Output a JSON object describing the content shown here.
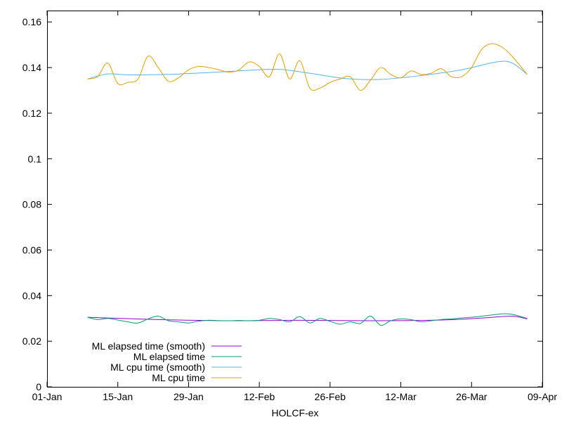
{
  "chart_data": {
    "type": "line",
    "title": "",
    "xlabel": "HOLCF-ex",
    "ylabel": "",
    "x_ticks": [
      "01-Jan",
      "15-Jan",
      "29-Jan",
      "12-Feb",
      "26-Feb",
      "12-Mar",
      "26-Mar",
      "09-Apr"
    ],
    "y_ticks": [
      "0",
      "0.02",
      "0.04",
      "0.06",
      "0.08",
      "0.1",
      "0.12",
      "0.14",
      "0.16"
    ],
    "xlim": [
      "2021-01-01",
      "2021-04-09"
    ],
    "ylim": [
      0,
      0.165
    ],
    "grid": false,
    "legend_position": "bottom-left",
    "series": [
      {
        "name": "ML elapsed time (smooth)",
        "color": "#9400d3",
        "x": [
          "2021-01-09",
          "2021-01-23",
          "2021-02-06",
          "2021-02-20",
          "2021-03-06",
          "2021-03-20",
          "2021-03-29",
          "2021-04-03",
          "2021-04-06"
        ],
        "y": [
          0.0305,
          0.0295,
          0.029,
          0.0292,
          0.029,
          0.0293,
          0.0303,
          0.031,
          0.0298
        ]
      },
      {
        "name": "ML elapsed time",
        "color": "#009e73",
        "x": [
          "2021-01-09",
          "2021-01-11",
          "2021-01-13",
          "2021-01-15",
          "2021-01-17",
          "2021-01-19",
          "2021-01-21",
          "2021-01-23",
          "2021-01-25",
          "2021-01-27",
          "2021-01-29",
          "2021-01-31",
          "2021-02-02",
          "2021-02-04",
          "2021-02-06",
          "2021-02-08",
          "2021-02-10",
          "2021-02-12",
          "2021-02-14",
          "2021-02-16",
          "2021-02-18",
          "2021-02-20",
          "2021-02-22",
          "2021-02-24",
          "2021-02-26",
          "2021-02-28",
          "2021-03-02",
          "2021-03-04",
          "2021-03-06",
          "2021-03-08",
          "2021-03-10",
          "2021-03-12",
          "2021-03-14",
          "2021-03-16",
          "2021-03-18",
          "2021-03-20",
          "2021-03-22",
          "2021-03-24",
          "2021-03-26",
          "2021-03-28",
          "2021-03-30",
          "2021-04-01",
          "2021-04-03",
          "2021-04-06"
        ],
        "y": [
          0.0305,
          0.0295,
          0.03,
          0.0293,
          0.0285,
          0.028,
          0.0298,
          0.031,
          0.029,
          0.0285,
          0.028,
          0.0288,
          0.0292,
          0.029,
          0.029,
          0.0291,
          0.029,
          0.0292,
          0.03,
          0.0295,
          0.0285,
          0.0308,
          0.028,
          0.03,
          0.0287,
          0.0275,
          0.0285,
          0.0278,
          0.031,
          0.027,
          0.029,
          0.0298,
          0.0295,
          0.0285,
          0.029,
          0.0295,
          0.0298,
          0.0302,
          0.0305,
          0.031,
          0.0315,
          0.032,
          0.0318,
          0.03
        ]
      },
      {
        "name": "ML cpu time (smooth)",
        "color": "#56b4e9",
        "x": [
          "2021-01-09",
          "2021-01-13",
          "2021-01-17",
          "2021-01-25",
          "2021-02-02",
          "2021-02-10",
          "2021-02-16",
          "2021-02-22",
          "2021-03-01",
          "2021-03-08",
          "2021-03-16",
          "2021-03-24",
          "2021-03-31",
          "2021-04-03",
          "2021-04-06"
        ],
        "y": [
          0.135,
          0.1372,
          0.1368,
          0.137,
          0.1378,
          0.1388,
          0.1392,
          0.1375,
          0.1352,
          0.1348,
          0.1365,
          0.139,
          0.1425,
          0.142,
          0.137
        ]
      },
      {
        "name": "ML cpu time",
        "color": "#e69f00",
        "x": [
          "2021-01-09",
          "2021-01-11",
          "2021-01-13",
          "2021-01-15",
          "2021-01-17",
          "2021-01-19",
          "2021-01-21",
          "2021-01-23",
          "2021-01-25",
          "2021-01-27",
          "2021-01-29",
          "2021-01-31",
          "2021-02-02",
          "2021-02-04",
          "2021-02-06",
          "2021-02-08",
          "2021-02-10",
          "2021-02-12",
          "2021-02-14",
          "2021-02-16",
          "2021-02-18",
          "2021-02-20",
          "2021-02-22",
          "2021-02-24",
          "2021-02-26",
          "2021-02-28",
          "2021-03-02",
          "2021-03-04",
          "2021-03-06",
          "2021-03-08",
          "2021-03-10",
          "2021-03-12",
          "2021-03-14",
          "2021-03-16",
          "2021-03-18",
          "2021-03-20",
          "2021-03-22",
          "2021-03-24",
          "2021-03-26",
          "2021-03-28",
          "2021-03-30",
          "2021-04-01",
          "2021-04-03",
          "2021-04-06"
        ],
        "y": [
          0.135,
          0.136,
          0.142,
          0.133,
          0.1335,
          0.135,
          0.145,
          0.14,
          0.134,
          0.1355,
          0.139,
          0.1405,
          0.14,
          0.139,
          0.138,
          0.139,
          0.1425,
          0.1405,
          0.136,
          0.146,
          0.135,
          0.143,
          0.131,
          0.131,
          0.1335,
          0.135,
          0.136,
          0.13,
          0.1345,
          0.14,
          0.137,
          0.1355,
          0.1385,
          0.137,
          0.1375,
          0.1395,
          0.136,
          0.136,
          0.14,
          0.148,
          0.1505,
          0.149,
          0.145,
          0.137
        ]
      }
    ]
  }
}
